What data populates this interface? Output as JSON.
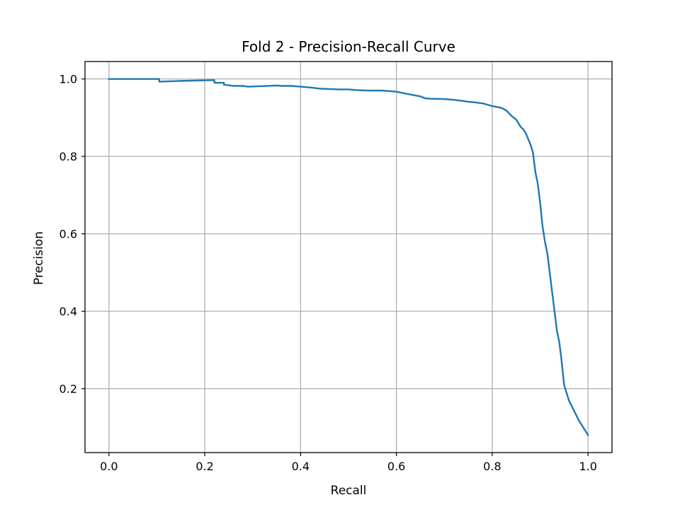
{
  "chart_data": {
    "type": "line",
    "title": "Fold 2 - Precision-Recall Curve",
    "xlabel": "Recall",
    "ylabel": "Precision",
    "xlim": [
      -0.05,
      1.05
    ],
    "ylim": [
      0.035,
      1.045
    ],
    "grid": true,
    "legend": "none",
    "x_ticks": [
      0.0,
      0.2,
      0.4,
      0.6,
      0.8,
      1.0
    ],
    "x_tick_labels": [
      "0.0",
      "0.2",
      "0.4",
      "0.6",
      "0.8",
      "1.0"
    ],
    "y_ticks": [
      0.2,
      0.4,
      0.6,
      0.8,
      1.0
    ],
    "y_tick_labels": [
      "0.2",
      "0.4",
      "0.6",
      "0.8",
      "1.0"
    ],
    "colors": {
      "series": "#1f77b4",
      "grid": "#b0b0b0",
      "axes": "#000000"
    },
    "series": [
      {
        "x": [
          0.0,
          0.105,
          0.105,
          0.15,
          0.22,
          0.22,
          0.24,
          0.24,
          0.26,
          0.28,
          0.29,
          0.35,
          0.36,
          0.38,
          0.4,
          0.42,
          0.44,
          0.48,
          0.5,
          0.52,
          0.54,
          0.57,
          0.58,
          0.6,
          0.62,
          0.65,
          0.66,
          0.67,
          0.7,
          0.72,
          0.74,
          0.75,
          0.76,
          0.78,
          0.8,
          0.82,
          0.83,
          0.84,
          0.85,
          0.86,
          0.865,
          0.87,
          0.875,
          0.88,
          0.885,
          0.89,
          0.895,
          0.9,
          0.905,
          0.91,
          0.915,
          0.92,
          0.925,
          0.93,
          0.935,
          0.94,
          0.945,
          0.95,
          0.955,
          0.96,
          0.97,
          0.98,
          0.99,
          1.0
        ],
        "y": [
          1.0,
          1.0,
          0.993,
          0.995,
          0.997,
          0.99,
          0.99,
          0.985,
          0.982,
          0.982,
          0.98,
          0.983,
          0.982,
          0.982,
          0.98,
          0.978,
          0.975,
          0.973,
          0.973,
          0.971,
          0.97,
          0.97,
          0.969,
          0.967,
          0.962,
          0.955,
          0.95,
          0.949,
          0.948,
          0.946,
          0.943,
          0.941,
          0.94,
          0.937,
          0.93,
          0.925,
          0.918,
          0.905,
          0.895,
          0.875,
          0.87,
          0.86,
          0.845,
          0.83,
          0.81,
          0.76,
          0.73,
          0.68,
          0.62,
          0.58,
          0.55,
          0.5,
          0.45,
          0.4,
          0.35,
          0.32,
          0.27,
          0.21,
          0.19,
          0.17,
          0.145,
          0.12,
          0.1,
          0.08
        ]
      }
    ]
  }
}
